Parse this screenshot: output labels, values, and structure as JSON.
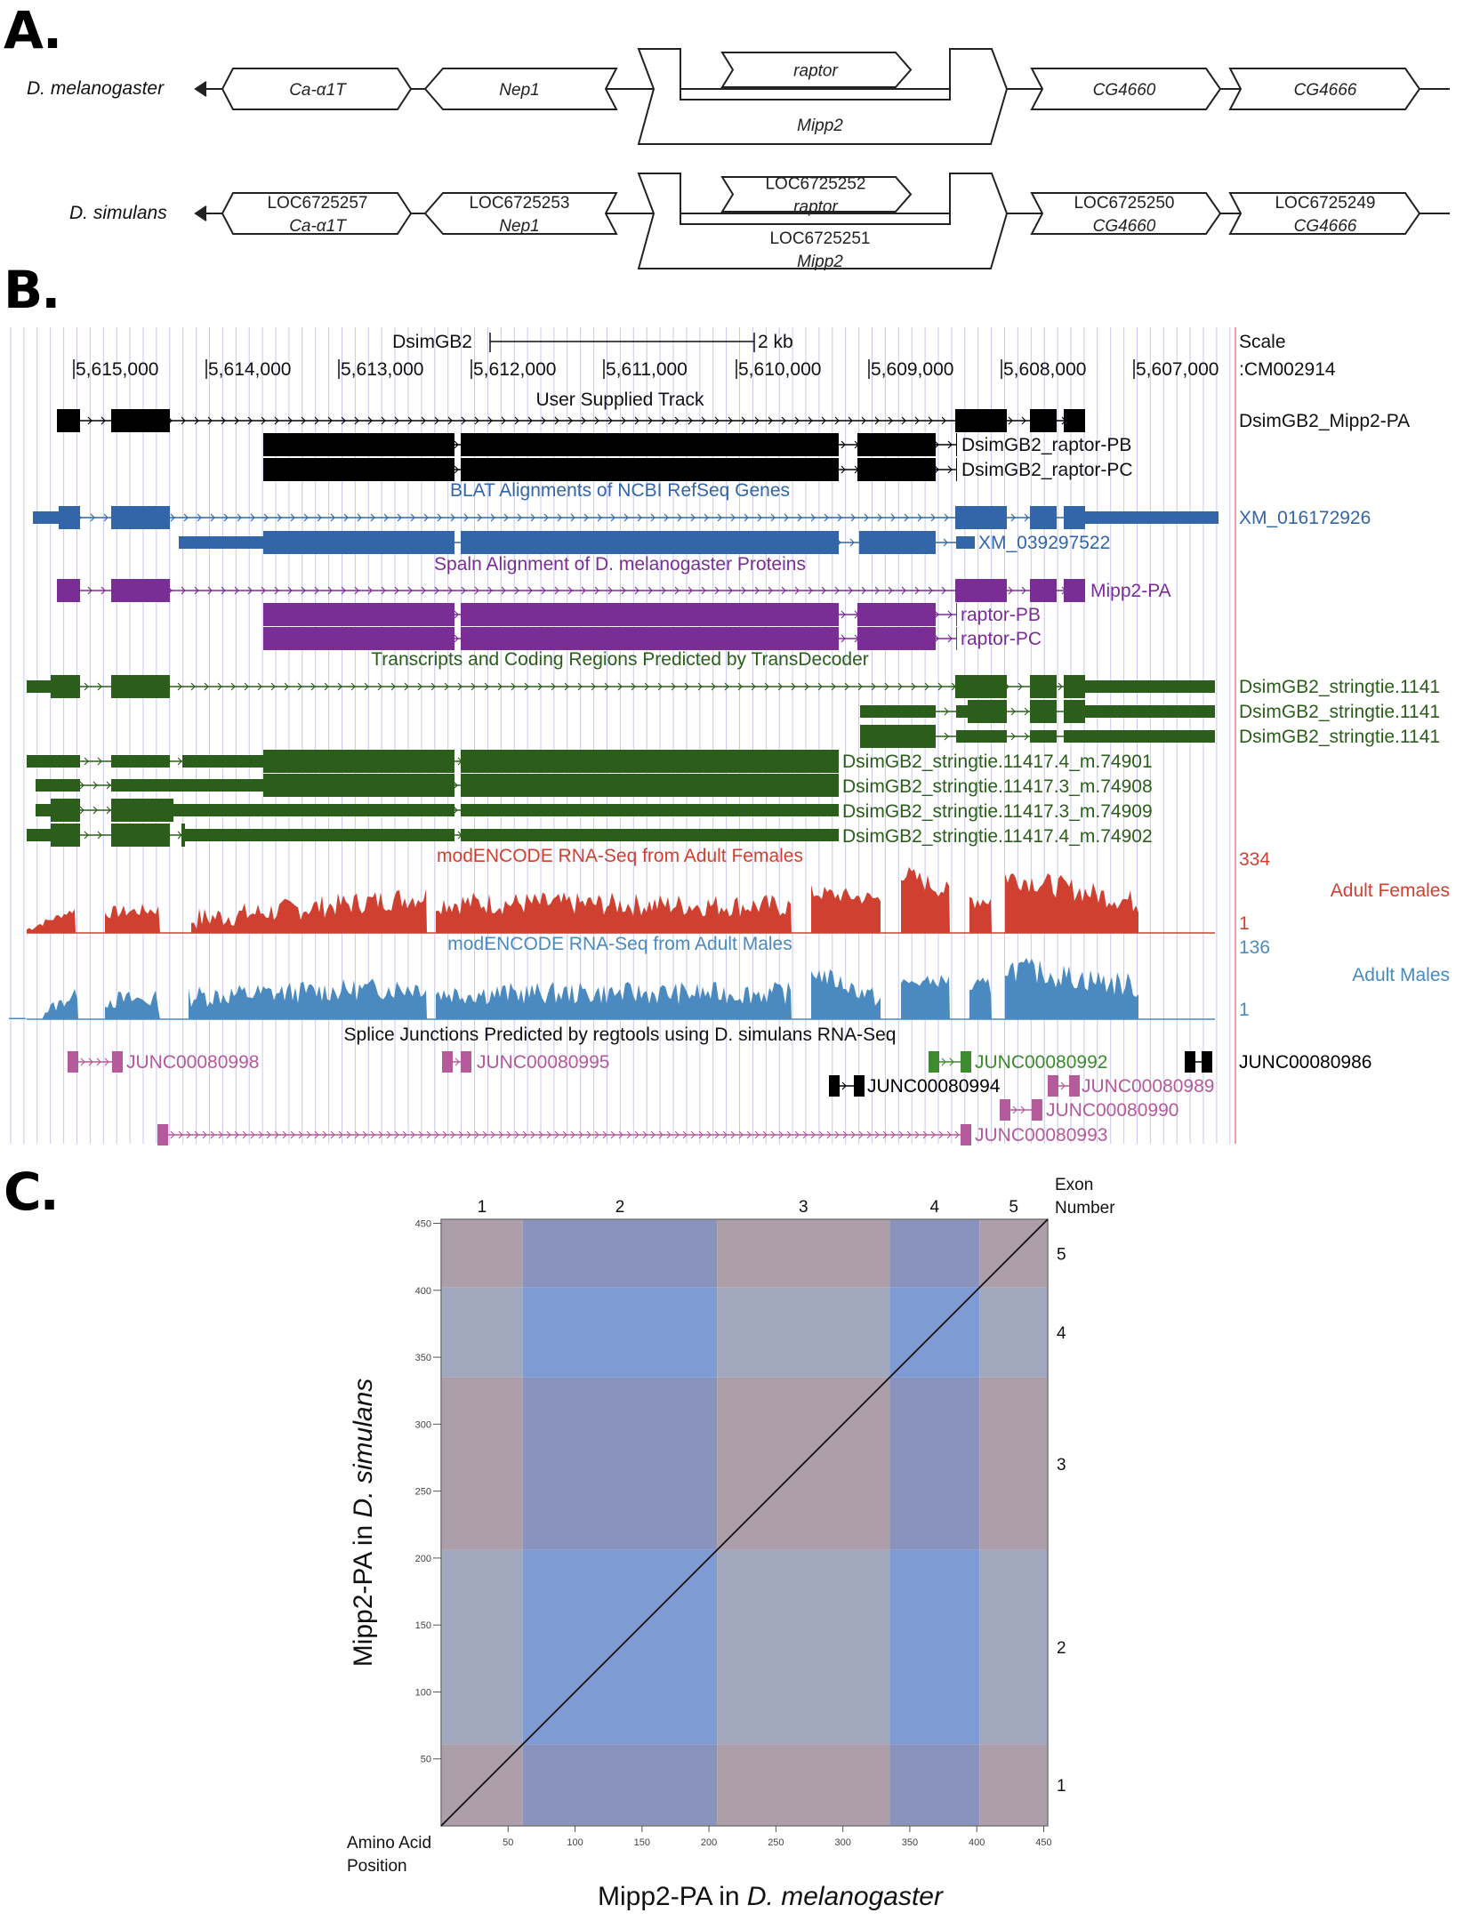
{
  "panels": {
    "a": "A.",
    "b": "B.",
    "c": "C."
  },
  "panel_a": {
    "rows": [
      {
        "species": "D. melanogaster",
        "genes": {
          "ca": [
            "Ca-α1T"
          ],
          "nep": [
            "Nep1"
          ],
          "raptor": [
            "raptor"
          ],
          "mipp2": [
            "Mipp2"
          ],
          "cg4660": [
            "CG4660"
          ],
          "cg4666": [
            "CG4666"
          ]
        }
      },
      {
        "species": "D. simulans",
        "genes": {
          "ca": [
            "LOC6725257",
            "Ca-α1T"
          ],
          "nep": [
            "LOC6725253",
            "Nep1"
          ],
          "raptor": [
            "LOC6725252",
            "raptor"
          ],
          "mipp2": [
            "LOC6725251",
            "Mipp2"
          ],
          "cg4660": [
            "LOC6725250",
            "CG4660"
          ],
          "cg4666": [
            "LOC6725249",
            "CG4666"
          ]
        }
      }
    ]
  },
  "panel_b": {
    "scale": {
      "assembly": "DsimGB2",
      "bar_label": "2 kb",
      "scale_word": "Scale",
      "chrom": ":CM002914"
    },
    "ticks": [
      "5,615,000",
      "5,614,000",
      "5,613,000",
      "5,612,000",
      "5,611,000",
      "5,610,000",
      "5,609,000",
      "5,608,000",
      "5,607,000"
    ],
    "colors": {
      "user": "#000000",
      "blat": "#3366a8",
      "spaln": "#7b2d96",
      "transdecoder": "#2b5e1b",
      "females": "#d04030",
      "males": "#4a8ac0",
      "junc_pink": "#b55a9a",
      "junc_green": "#3e8a2e",
      "junc_black": "#000000",
      "grid": "#c8c8f0",
      "divider": "#e88080"
    },
    "tracks": {
      "user": {
        "title": "User Supplied Track",
        "labels": [
          "DsimGB2_Mipp2-PA",
          "DsimGB2_raptor-PB",
          "DsimGB2_raptor-PC"
        ]
      },
      "blat": {
        "title": "BLAT Alignments of NCBI RefSeq Genes",
        "labels": [
          "XM_016172926",
          "XM_039297522"
        ]
      },
      "spaln": {
        "title": "Spaln Alignment of D. melanogaster Proteins",
        "labels": [
          "Mipp2-PA",
          "raptor-PB",
          "raptor-PC"
        ]
      },
      "transdecoder": {
        "title": "Transcripts and Coding Regions Predicted by TransDecoder",
        "labels": [
          "DsimGB2_stringtie.1141",
          "DsimGB2_stringtie.1141",
          "DsimGB2_stringtie.1141",
          "DsimGB2_stringtie.11417.4_m.74901",
          "DsimGB2_stringtie.11417.3_m.74908",
          "DsimGB2_stringtie.11417.3_m.74909",
          "DsimGB2_stringtie.11417.4_m.74902"
        ]
      },
      "females": {
        "title": "modENCODE RNA-Seq from Adult Females",
        "name": "Adult Females",
        "max": "334",
        "min": "1"
      },
      "males": {
        "title": "modENCODE RNA-Seq from Adult Males",
        "name": "Adult Males",
        "max": "136",
        "min": "1"
      },
      "junctions": {
        "title": "Splice Junctions Predicted by regtools using D. simulans RNA-Seq",
        "labels": [
          "JUNC00080998",
          "JUNC00080995",
          "JUNC00080992",
          "JUNC00080986",
          "JUNC00080994",
          "JUNC00080989",
          "JUNC00080990",
          "JUNC00080993"
        ]
      }
    }
  },
  "chart_data": {
    "type": "scatter",
    "title": "",
    "xlabel": "Mipp2-PA in D. melanogaster",
    "ylabel": "Mipp2-PA in D. simulans",
    "corner_label": "Amino Acid Position",
    "exon_axis_label": "Exon Number",
    "xlim": [
      0,
      453
    ],
    "ylim": [
      0,
      453
    ],
    "xticks": [
      50,
      100,
      150,
      200,
      250,
      300,
      350,
      400,
      450
    ],
    "yticks": [
      50,
      100,
      150,
      200,
      250,
      300,
      350,
      400,
      450
    ],
    "x_exons": [
      {
        "n": "1",
        "start": 0,
        "end": 61
      },
      {
        "n": "2",
        "start": 61,
        "end": 206
      },
      {
        "n": "3",
        "start": 206,
        "end": 335
      },
      {
        "n": "4",
        "start": 335,
        "end": 402
      },
      {
        "n": "5",
        "start": 402,
        "end": 453
      }
    ],
    "y_exons": [
      {
        "n": "1",
        "start": 0,
        "end": 61
      },
      {
        "n": "2",
        "start": 61,
        "end": 206
      },
      {
        "n": "3",
        "start": 206,
        "end": 335
      },
      {
        "n": "4",
        "start": 335,
        "end": 402
      },
      {
        "n": "5",
        "start": 402,
        "end": 453
      }
    ],
    "series": [
      {
        "name": "alignment diagonal",
        "x": [
          0,
          453
        ],
        "y": [
          0,
          453
        ]
      }
    ]
  }
}
